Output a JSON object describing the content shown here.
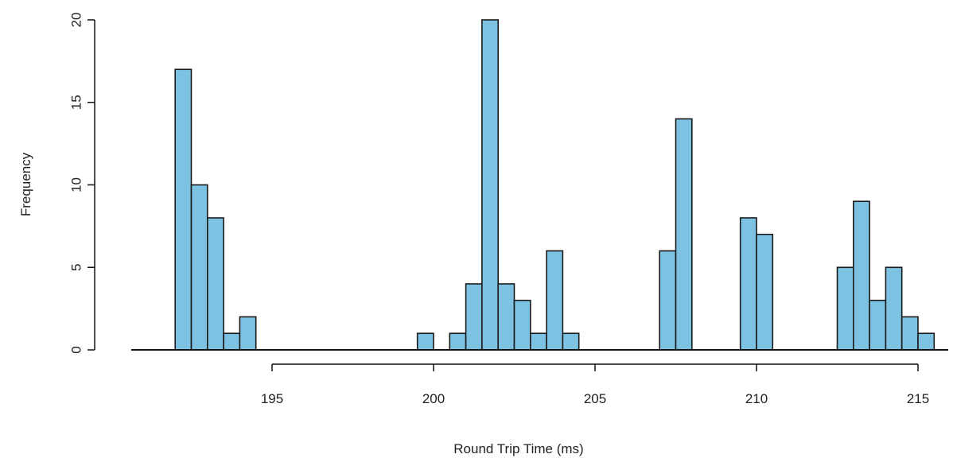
{
  "chart_data": {
    "type": "bar",
    "title": "",
    "xlabel": "Round Trip Time (ms)",
    "ylabel": "Frequency",
    "xlim": [
      191.6,
      215.4
    ],
    "ylim": [
      0,
      20
    ],
    "x_ticks": [
      195,
      200,
      205,
      210,
      215
    ],
    "y_ticks": [
      0,
      5,
      10,
      15,
      20
    ],
    "bin_width": 0.5,
    "bins": [
      {
        "start": 192.0,
        "end": 192.5,
        "count": 17
      },
      {
        "start": 192.5,
        "end": 193.0,
        "count": 10
      },
      {
        "start": 193.0,
        "end": 193.5,
        "count": 8
      },
      {
        "start": 193.5,
        "end": 194.0,
        "count": 1
      },
      {
        "start": 194.0,
        "end": 194.5,
        "count": 2
      },
      {
        "start": 199.5,
        "end": 200.0,
        "count": 1
      },
      {
        "start": 200.5,
        "end": 201.0,
        "count": 1
      },
      {
        "start": 201.0,
        "end": 201.5,
        "count": 4
      },
      {
        "start": 201.5,
        "end": 202.0,
        "count": 20
      },
      {
        "start": 202.0,
        "end": 202.5,
        "count": 4
      },
      {
        "start": 202.5,
        "end": 203.0,
        "count": 3
      },
      {
        "start": 203.0,
        "end": 203.5,
        "count": 1
      },
      {
        "start": 203.5,
        "end": 204.0,
        "count": 6
      },
      {
        "start": 204.0,
        "end": 204.5,
        "count": 1
      },
      {
        "start": 207.0,
        "end": 207.5,
        "count": 6
      },
      {
        "start": 207.5,
        "end": 208.0,
        "count": 14
      },
      {
        "start": 209.5,
        "end": 210.0,
        "count": 8
      },
      {
        "start": 210.0,
        "end": 210.5,
        "count": 7
      },
      {
        "start": 212.5,
        "end": 213.0,
        "count": 5
      },
      {
        "start": 213.0,
        "end": 213.5,
        "count": 9
      },
      {
        "start": 213.5,
        "end": 214.0,
        "count": 3
      },
      {
        "start": 214.0,
        "end": 214.5,
        "count": 5
      },
      {
        "start": 214.5,
        "end": 215.0,
        "count": 2
      },
      {
        "start": 215.0,
        "end": 215.5,
        "count": 1
      }
    ],
    "colors": {
      "bar_fill": "#7ec2e3",
      "bar_stroke": "#1a1a1a",
      "axis": "#111111"
    },
    "grid": false,
    "legend": "none"
  }
}
